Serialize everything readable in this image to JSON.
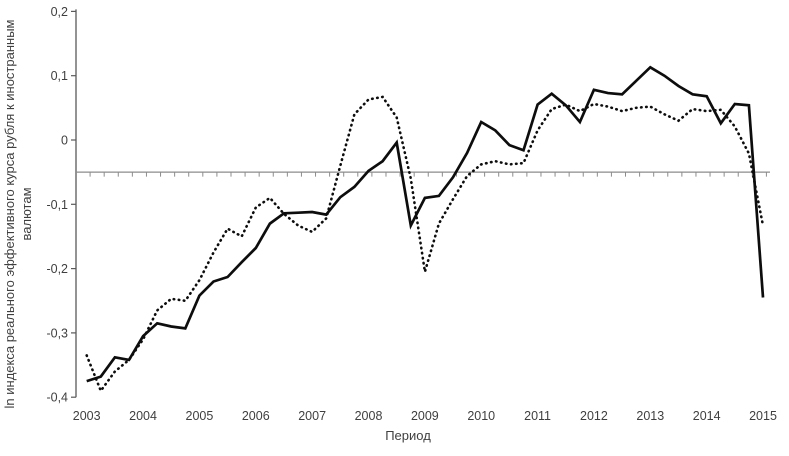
{
  "chart_data": {
    "type": "line",
    "title": "",
    "xlabel": "Период",
    "ylabel": "ln индекса реального эффективного курса рубля к иностранным валютам",
    "ylabel_lines": [
      "ln индекса реального эффективного курса рубля к иностранным",
      "валютам"
    ],
    "x_frequency": "quarterly",
    "x_start": "2003 Q1",
    "x_end": "2015 Q1",
    "x_tick_labels": [
      "2003",
      "2004",
      "2005",
      "2006",
      "2007",
      "2008",
      "2009",
      "2010",
      "2011",
      "2012",
      "2013",
      "2014",
      "2015"
    ],
    "y_tick_labels": [
      "0,2",
      "0,1",
      "0",
      "-0,1",
      "-0,2",
      "-0,3",
      "-0,4"
    ],
    "y_tick_values": [
      0.2,
      0.1,
      0,
      -0.1,
      -0.2,
      -0.3,
      -0.4
    ],
    "ylim": [
      -0.4,
      0.2
    ],
    "reference_line_y": -0.05,
    "grid": "off",
    "legend": "none",
    "series": [
      {
        "name": "solid-line",
        "style": "solid",
        "values": [
          -0.375,
          -0.368,
          -0.338,
          -0.342,
          -0.305,
          -0.285,
          -0.29,
          -0.293,
          -0.242,
          -0.22,
          -0.213,
          -0.19,
          -0.168,
          -0.13,
          -0.114,
          -0.113,
          -0.112,
          -0.116,
          -0.089,
          -0.073,
          -0.048,
          -0.033,
          -0.004,
          -0.133,
          -0.09,
          -0.087,
          -0.058,
          -0.02,
          0.028,
          0.015,
          -0.008,
          -0.016,
          0.055,
          0.072,
          0.054,
          0.028,
          0.078,
          0.073,
          0.071,
          0.092,
          0.113,
          0.1,
          0.084,
          0.071,
          0.068,
          0.026,
          0.056,
          0.054,
          -0.245
        ]
      },
      {
        "name": "dotted-line",
        "style": "dotted",
        "values": [
          -0.335,
          -0.39,
          -0.36,
          -0.342,
          -0.31,
          -0.265,
          -0.247,
          -0.25,
          -0.218,
          -0.175,
          -0.138,
          -0.15,
          -0.105,
          -0.09,
          -0.115,
          -0.133,
          -0.143,
          -0.122,
          -0.04,
          0.04,
          0.063,
          0.067,
          0.035,
          -0.06,
          -0.205,
          -0.13,
          -0.092,
          -0.056,
          -0.038,
          -0.033,
          -0.038,
          -0.036,
          0.015,
          0.048,
          0.055,
          0.045,
          0.056,
          0.052,
          0.045,
          0.05,
          0.052,
          0.04,
          0.03,
          0.048,
          0.045,
          0.047,
          0.021,
          -0.021,
          -0.133
        ]
      }
    ],
    "colors": {
      "series_line": "#0d0d0d",
      "reference_line": "#8c8c8c",
      "y_axis_line": "#595959",
      "label_text": "#3f3f3f",
      "background": "#ffffff"
    }
  }
}
